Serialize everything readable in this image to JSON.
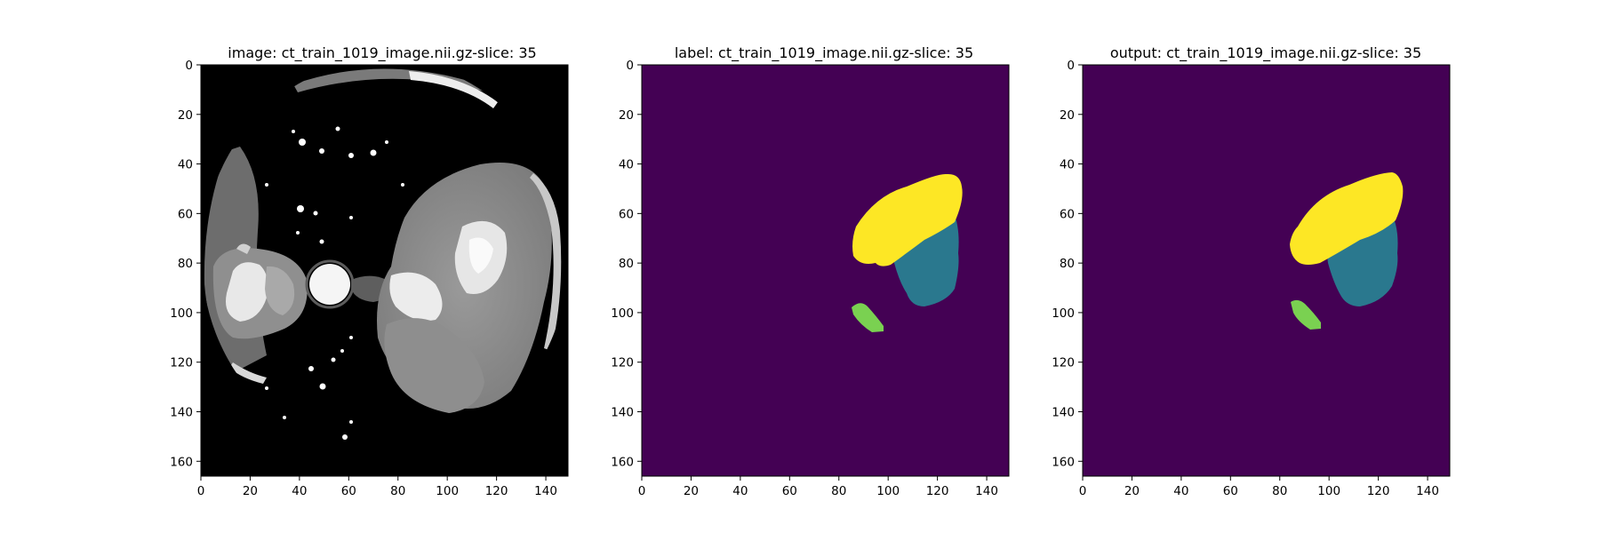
{
  "figure": {
    "panels": [
      {
        "id": "image",
        "title": "image: ct_train_1019_image.nii.gz-slice: 35",
        "kind": "ct-grayscale"
      },
      {
        "id": "label",
        "title": "label: ct_train_1019_image.nii.gz-slice: 35",
        "kind": "segmentation"
      },
      {
        "id": "output",
        "title": "output: ct_train_1019_image.nii.gz-slice: 35",
        "kind": "segmentation"
      }
    ]
  },
  "chart_data": {
    "type": "heatmap",
    "x_range": [
      0,
      149
    ],
    "y_range": [
      0,
      166
    ],
    "x_ticks": [
      "0",
      "20",
      "40",
      "60",
      "80",
      "100",
      "120",
      "140"
    ],
    "y_ticks": [
      "0",
      "20",
      "40",
      "60",
      "80",
      "100",
      "120",
      "140",
      "160"
    ],
    "colormaps": {
      "image": "gray",
      "label": "viridis",
      "output": "viridis"
    },
    "colors": {
      "background": "#440154",
      "class_yellow": "#fde725",
      "class_teal": "#2a788e",
      "class_green": "#7ad151",
      "ct_black": "#000000",
      "ct_tissue": "#8a8a8a",
      "ct_contrast": "#f2f2f2"
    }
  }
}
